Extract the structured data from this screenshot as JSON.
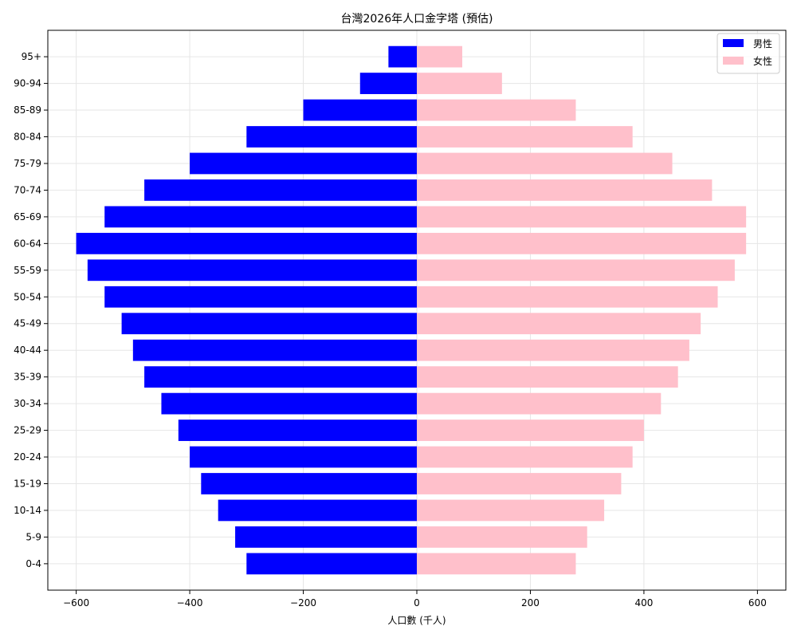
{
  "chart_data": {
    "type": "bar",
    "orientation": "horizontal",
    "title": "台灣2026年人口金字塔 (預估)",
    "xlabel": "人口數 (千人)",
    "ylabel": "",
    "xlim": [
      -650,
      650
    ],
    "xticks": [
      -600,
      -400,
      -200,
      0,
      200,
      400,
      600
    ],
    "xtick_labels": [
      "−600",
      "−400",
      "−200",
      "0",
      "200",
      "400",
      "600"
    ],
    "grid": true,
    "legend": "top-right",
    "categories": [
      "0-4",
      "5-9",
      "10-14",
      "15-19",
      "20-24",
      "25-29",
      "30-34",
      "35-39",
      "40-44",
      "45-49",
      "50-54",
      "55-59",
      "60-64",
      "65-69",
      "70-74",
      "75-79",
      "80-84",
      "85-89",
      "90-94",
      "95+"
    ],
    "series": [
      {
        "name": "男性",
        "color": "#0000ff",
        "values": [
          -300,
          -320,
          -350,
          -380,
          -400,
          -420,
          -450,
          -480,
          -500,
          -520,
          -550,
          -580,
          -600,
          -550,
          -480,
          -400,
          -300,
          -200,
          -100,
          -50
        ]
      },
      {
        "name": "女性",
        "color": "#ffc0cb",
        "values": [
          280,
          300,
          330,
          360,
          380,
          400,
          430,
          460,
          480,
          500,
          530,
          560,
          580,
          580,
          520,
          450,
          380,
          280,
          150,
          80
        ]
      }
    ]
  }
}
